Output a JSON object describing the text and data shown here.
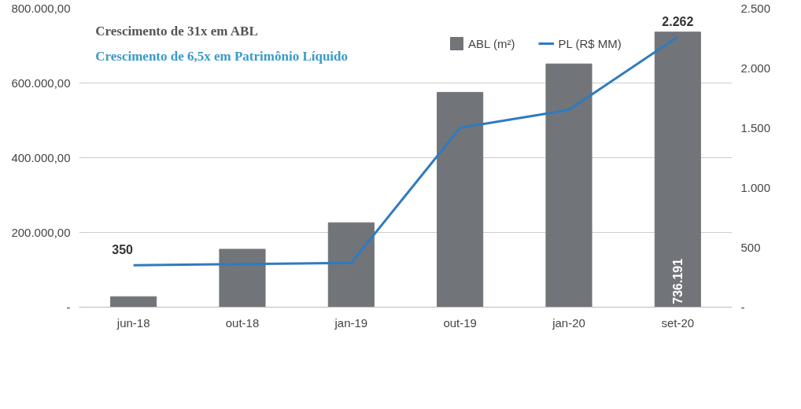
{
  "chart_data": {
    "type": "bar",
    "title": "Crescimento de 31x em ABL",
    "subtitle": "Crescimento de 6,5x em Patrimônio Líquido",
    "categories": [
      "jun-18",
      "out-18",
      "jan-19",
      "out-19",
      "jan-20",
      "set-20"
    ],
    "series": [
      {
        "name": "ABL (m²)",
        "color": "#717478",
        "values": [
          28000,
          155000,
          226000,
          575000,
          651000,
          736191
        ],
        "value_labels": [
          null,
          null,
          null,
          null,
          null,
          "736.191"
        ]
      },
      {
        "name": "PL (R$ MM)",
        "type": "line",
        "axis": "y2",
        "color": "#2f7bbf",
        "values": [
          350,
          360,
          370,
          1500,
          1650,
          2262
        ],
        "value_labels": [
          "350",
          null,
          null,
          null,
          null,
          "2.262"
        ]
      }
    ],
    "ylim": [
      0,
      800000
    ],
    "yticks": [
      {
        "value": 0,
        "label": "-"
      },
      {
        "value": 200000,
        "label": "200.000,00"
      },
      {
        "value": 400000,
        "label": "400.000,00"
      },
      {
        "value": 600000,
        "label": "600.000,00"
      },
      {
        "value": 800000,
        "label": "800.000,00"
      }
    ],
    "y2lim": [
      0,
      2500
    ],
    "y2ticks": [
      {
        "value": 0,
        "label": "-"
      },
      {
        "value": 500,
        "label": "500"
      },
      {
        "value": 1000,
        "label": "1.000"
      },
      {
        "value": 1500,
        "label": "1.500"
      },
      {
        "value": 2000,
        "label": "2.000"
      },
      {
        "value": 2500,
        "label": "2.500"
      }
    ],
    "grid": "y",
    "legend": "top",
    "marker": "none",
    "line_style": "solid"
  }
}
